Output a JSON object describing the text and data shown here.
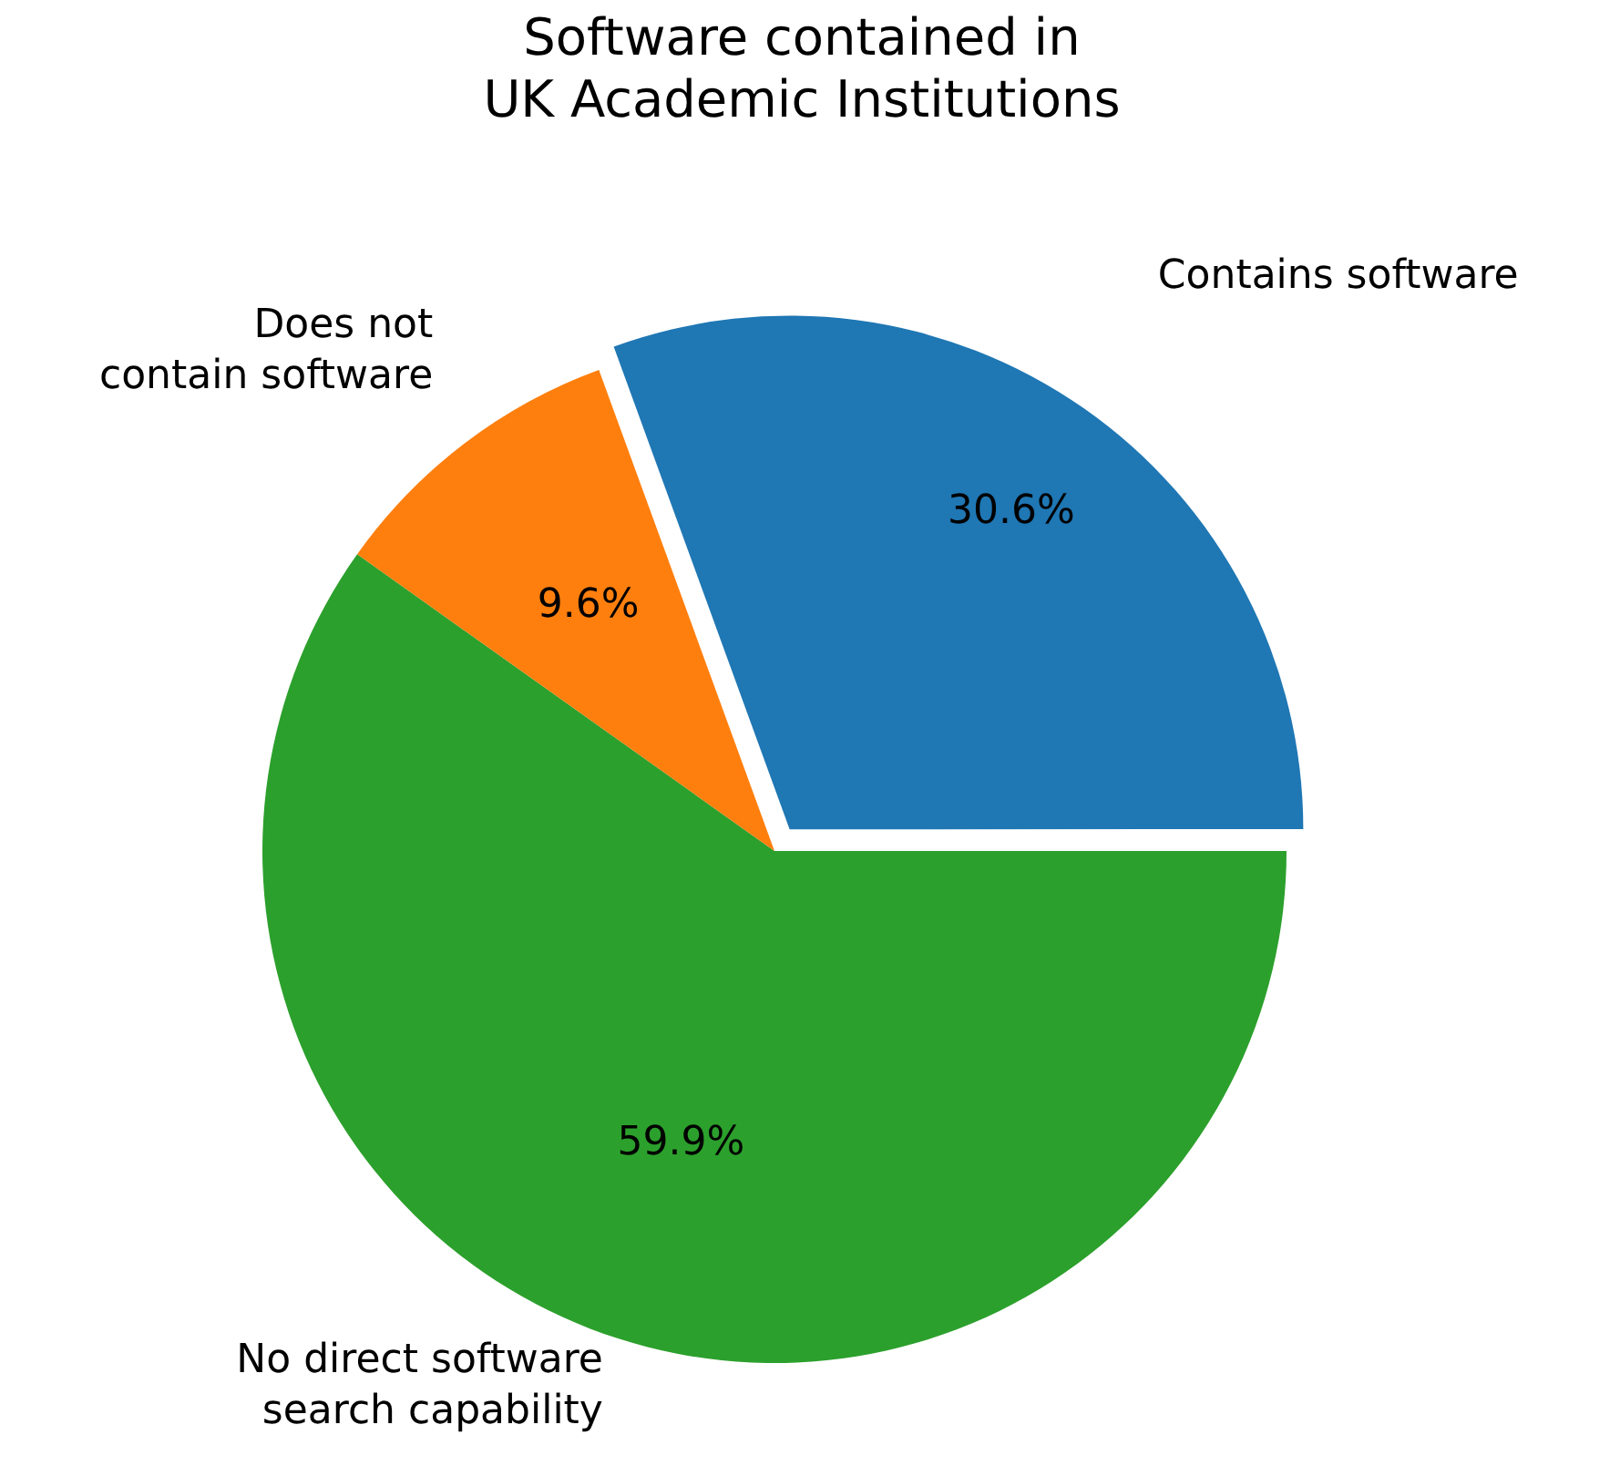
{
  "chart_data": {
    "type": "pie",
    "title": "Software contained in\nUK Academic Institutions",
    "categories": [
      "Contains software",
      "Does not\ncontain software",
      "No direct software\nsearch capability"
    ],
    "values": [
      30.6,
      9.6,
      59.9
    ],
    "colors": [
      "#1f77b4",
      "#ff7f0e",
      "#2ca02c"
    ],
    "value_labels": [
      "30.6%",
      "9.6%",
      "59.9%"
    ],
    "legend": false
  }
}
